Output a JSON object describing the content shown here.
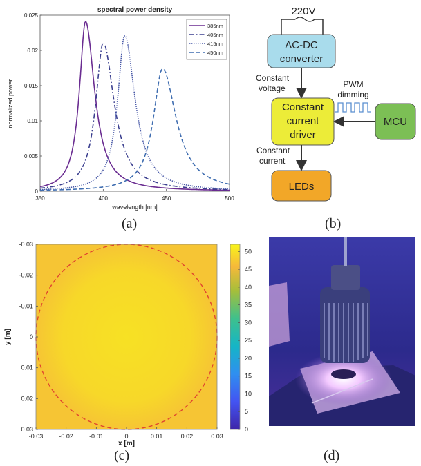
{
  "panels": {
    "a": {
      "caption": "(a)",
      "chart_data": {
        "type": "line",
        "title": "spectral power density",
        "xlabel": "wavelength [nm]",
        "ylabel": "normalized power",
        "xlim": [
          350,
          500
        ],
        "ylim": [
          0,
          0.025
        ],
        "xticks": [
          "350",
          "400",
          "450",
          "500"
        ],
        "yticks": [
          "0",
          "0.005",
          "0.01",
          "0.015",
          "0.02",
          "0.025"
        ],
        "legend_position": "top-right",
        "series": [
          {
            "name": "385nm",
            "peak_x": 386,
            "peak_y": 0.0241,
            "sigma": 7.0,
            "color": "#6a2c91",
            "style": "solid"
          },
          {
            "name": "405nm",
            "peak_x": 400,
            "peak_y": 0.0211,
            "sigma": 8.5,
            "color": "#3b3f8f",
            "style": "dashdot"
          },
          {
            "name": "415nm",
            "peak_x": 417,
            "peak_y": 0.0221,
            "sigma": 8.0,
            "color": "#4a5aa8",
            "style": "dotted"
          },
          {
            "name": "450nm",
            "peak_x": 447,
            "peak_y": 0.0174,
            "sigma": 10.5,
            "color": "#3f6db0",
            "style": "dashed"
          }
        ]
      }
    },
    "b": {
      "caption": "(b)",
      "voltage": "220V",
      "acdc": [
        "AC-DC",
        "converter"
      ],
      "constant_voltage": [
        "Constant",
        "voltage"
      ],
      "pwm": [
        "PWM",
        "dimming"
      ],
      "driver": [
        "Constant",
        "current",
        "driver"
      ],
      "mcu": "MCU",
      "constant_current": [
        "Constant",
        "current"
      ],
      "leds": "LEDs",
      "colors": {
        "acdc": "#a9dcec",
        "driver": "#ecec38",
        "mcu": "#7cbf55",
        "leds": "#f2a728",
        "pwm": "#5b8fd0"
      }
    },
    "c": {
      "caption": "(c)",
      "chart_data": {
        "type": "heatmap",
        "xlabel": "x [m]",
        "ylabel": "y [m]",
        "xlim": [
          -0.03,
          0.03
        ],
        "ylim": [
          -0.03,
          0.03
        ],
        "xticks": [
          "-0.03",
          "-0.02",
          "-0.01",
          "0",
          "0.01",
          "0.02",
          "0.03"
        ],
        "yticks": [
          "-0.03",
          "-0.02",
          "-0.01",
          "0",
          "0.01",
          "0.02",
          "0.03"
        ],
        "colorbar": {
          "min": 0,
          "max": 52,
          "ticks": [
            "50",
            "45",
            "40",
            "35",
            "30",
            "25",
            "20",
            "15",
            "10",
            "5",
            "0"
          ]
        },
        "values_range": [
          47,
          50
        ],
        "circle_radius": 0.03
      }
    },
    "d": {
      "caption": "(d)"
    }
  }
}
